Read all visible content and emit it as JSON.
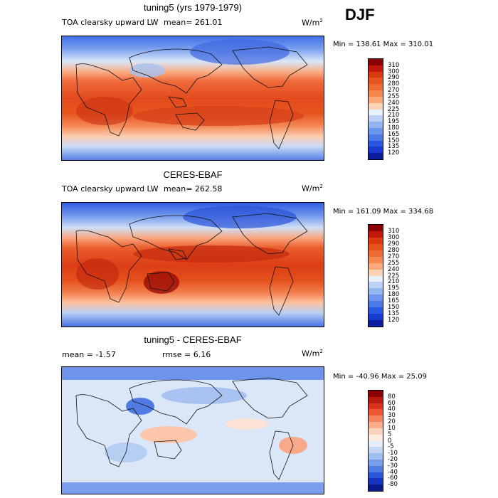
{
  "season": "DJF",
  "units_label": "W/m",
  "units_sup": "2",
  "panels": [
    {
      "title": "tuning5 (yrs 1979-1979)",
      "variable": "TOA clearsky upward LW",
      "stat1": "mean= 261.01",
      "stat2": "",
      "minmax": "Min = 138.61 Max = 310.01",
      "colorbar_labels": [
        "310",
        "300",
        "290",
        "280",
        "270",
        "255",
        "240",
        "225",
        "210",
        "195",
        "180",
        "165",
        "150",
        "135",
        "120"
      ],
      "colorbar_colors": [
        "#8b0000",
        "#c1180c",
        "#d93a10",
        "#e6531c",
        "#ee6a34",
        "#f6874f",
        "#fba978",
        "#fdd3b6",
        "#e6effa",
        "#bcd1f3",
        "#93b4ee",
        "#6d95ec",
        "#4c79e8",
        "#2a59df",
        "#1a3bd0",
        "#0c1c9c"
      ]
    },
    {
      "title": "CERES-EBAF",
      "variable": "TOA clearsky upward LW",
      "stat1": "mean= 262.58",
      "stat2": "",
      "minmax": "Min = 161.09 Max = 334.68",
      "colorbar_labels": [
        "310",
        "300",
        "290",
        "280",
        "270",
        "255",
        "240",
        "225",
        "210",
        "195",
        "180",
        "165",
        "150",
        "135",
        "120"
      ],
      "colorbar_colors": [
        "#8b0000",
        "#c1180c",
        "#d93a10",
        "#e6531c",
        "#ee6a34",
        "#f6874f",
        "#fba978",
        "#fdd3b6",
        "#e6effa",
        "#bcd1f3",
        "#93b4ee",
        "#6d95ec",
        "#4c79e8",
        "#2a59df",
        "#1a3bd0",
        "#0c1c9c"
      ]
    },
    {
      "title": "tuning5 - CERES-EBAF",
      "variable": "",
      "stat1": "mean =  -1.57",
      "stat2": "rmse =   6.16",
      "minmax": "Min = -40.96 Max =  25.09",
      "colorbar_labels": [
        "80",
        "60",
        "40",
        "30",
        "20",
        "10",
        "5",
        "0",
        "-5",
        "-10",
        "-20",
        "-30",
        "-40",
        "-60",
        "-80"
      ],
      "colorbar_colors": [
        "#8b0000",
        "#b71a0f",
        "#d8321c",
        "#ec5633",
        "#f7825b",
        "#fbac8d",
        "#fdd2bd",
        "#fdece2",
        "#e3ecf8",
        "#c3d6f3",
        "#9ebdee",
        "#779fe9",
        "#4f7de3",
        "#2a56d8",
        "#1534c2",
        "#0a1a8e"
      ]
    }
  ]
}
